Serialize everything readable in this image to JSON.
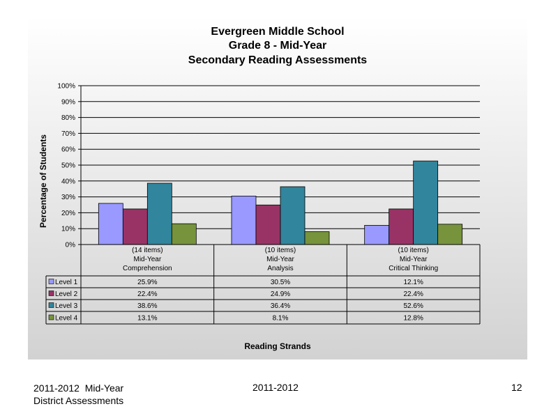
{
  "chart_data": {
    "type": "bar",
    "title": [
      "Evergreen Middle School",
      "Grade 8 - Mid-Year",
      "Secondary Reading Assessments"
    ],
    "ylabel": "Percentage of Students",
    "xlabel": "Reading Strands",
    "ylim": [
      0,
      100
    ],
    "yticks": [
      "0%",
      "10%",
      "20%",
      "30%",
      "40%",
      "50%",
      "60%",
      "70%",
      "80%",
      "90%",
      "100%"
    ],
    "grid": true,
    "categories": [
      [
        "(14 items)",
        "Mid-Year",
        "Comprehension"
      ],
      [
        "(10 items)",
        "Mid-Year",
        "Analysis"
      ],
      [
        "(10 items)",
        "Mid-Year",
        "Critical Thinking"
      ]
    ],
    "series": [
      {
        "name": "Level 1",
        "color": "#9999ff",
        "values": [
          25.9,
          30.5,
          12.1
        ],
        "labels": [
          "25.9%",
          "30.5%",
          "12.1%"
        ]
      },
      {
        "name": "Level 2",
        "color": "#993366",
        "values": [
          22.4,
          24.9,
          22.4
        ],
        "labels": [
          "22.4%",
          "24.9%",
          "22.4%"
        ]
      },
      {
        "name": "Level 3",
        "color": "#31859c",
        "values": [
          38.6,
          36.4,
          52.6
        ],
        "labels": [
          "38.6%",
          "36.4%",
          "52.6%"
        ]
      },
      {
        "name": "Level 4",
        "color": "#77933c",
        "values": [
          13.1,
          8.1,
          12.8
        ],
        "labels": [
          "13.1%",
          "8.1%",
          "12.8%"
        ]
      }
    ]
  },
  "footer": {
    "left_line1": "2011-2012  Mid-Year",
    "left_line2": "District Assessments",
    "center": "2011-2012",
    "page_number": "12"
  }
}
